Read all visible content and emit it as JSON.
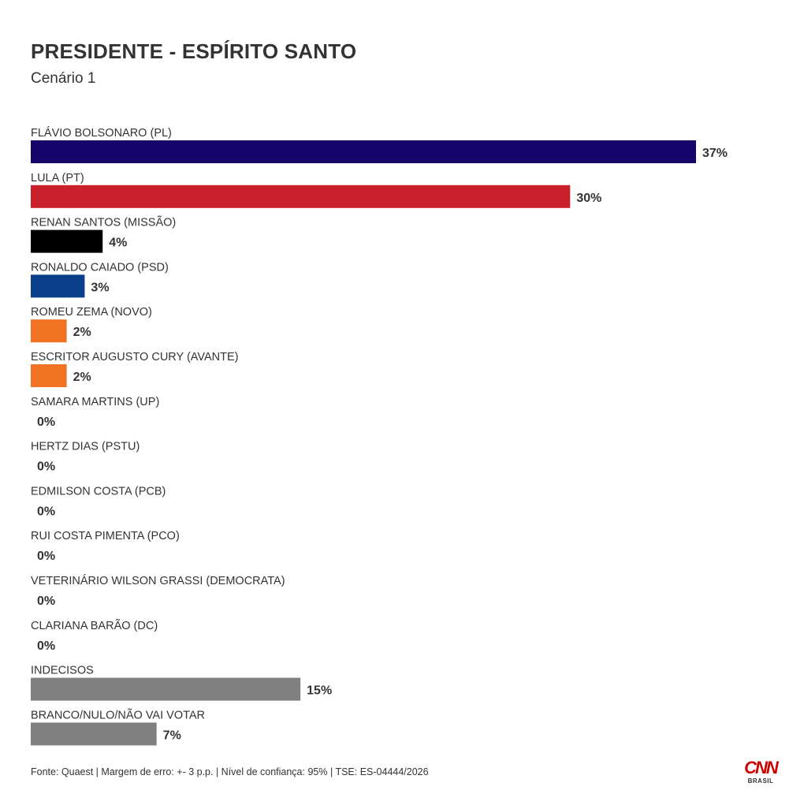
{
  "header": {
    "title": "PRESIDENTE - ESPÍRITO SANTO",
    "subtitle": "Cenário 1"
  },
  "chart_data": {
    "type": "bar",
    "orientation": "horizontal",
    "categories": [
      "FLÁVIO BOLSONARO (PL)",
      "LULA (PT)",
      "RENAN SANTOS (MISSÃO)",
      "RONALDO CAIADO (PSD)",
      "ROMEU ZEMA (NOVO)",
      "ESCRITOR AUGUSTO CURY (AVANTE)",
      "SAMARA MARTINS (UP)",
      "HERTZ DIAS (PSTU)",
      "EDMILSON COSTA (PCB)",
      "RUI COSTA PIMENTA (PCO)",
      "VETERINÁRIO WILSON GRASSI (DEMOCRATA)",
      "CLARIANA BARÃO (DC)",
      "INDECISOS",
      "BRANCO/NULO/NÃO VAI VOTAR"
    ],
    "values": [
      37,
      30,
      4,
      3,
      2,
      2,
      0,
      0,
      0,
      0,
      0,
      0,
      15,
      7
    ],
    "value_labels": [
      "37%",
      "30%",
      "4%",
      "3%",
      "2%",
      "2%",
      "0%",
      "0%",
      "0%",
      "0%",
      "0%",
      "0%",
      "15%",
      "7%"
    ],
    "colors": [
      "#15056b",
      "#c9202c",
      "#000000",
      "#0b3f8c",
      "#f07222",
      "#f07222",
      "#888888",
      "#888888",
      "#888888",
      "#888888",
      "#888888",
      "#888888",
      "#808080",
      "#808080"
    ],
    "xlim": [
      0,
      37
    ],
    "grid": false,
    "legend": "none"
  },
  "footer": {
    "source": "Fonte: Quaest | Margem de erro: +- 3 p.p. | Nível de confiança: 95% | TSE: ES-04444/2026"
  },
  "logo": {
    "main": "CNN",
    "sub": "BRASIL"
  }
}
